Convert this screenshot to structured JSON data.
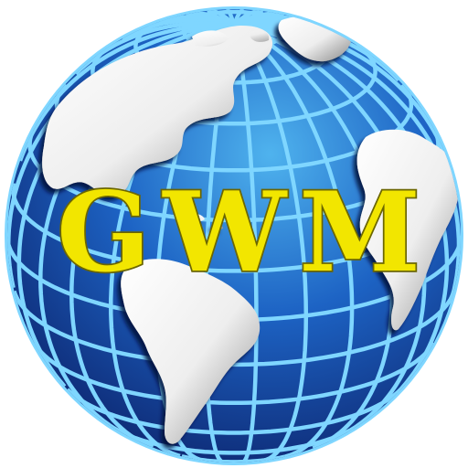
{
  "logo": {
    "text": "GWM",
    "text_fill": "#f2e600",
    "text_stroke": "#6b6600",
    "ocean_light": "#4fb3ee",
    "ocean_mid": "#1d63c4",
    "ocean_dark": "#0b1f66",
    "grid_color": "#7fd6ff",
    "land_light": "#ffffff",
    "land_shade": "#8a8a8a"
  }
}
